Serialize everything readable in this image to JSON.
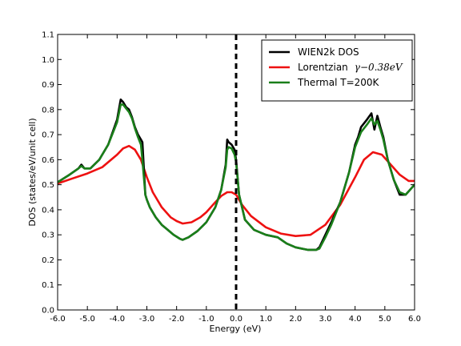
{
  "chart_data": {
    "type": "line",
    "title": "",
    "xlabel": "Energy (eV)",
    "ylabel": "DOS (states/eV/unit cell)",
    "xlim": [
      -6.0,
      6.0
    ],
    "ylim": [
      0.0,
      1.1
    ],
    "xticks": [
      "-6.0",
      "-5.0",
      "-4.0",
      "-3.0",
      "-2.0",
      "-1.0",
      "0.0",
      "1.0",
      "2.0",
      "3.0",
      "4.0",
      "5.0",
      "6.0"
    ],
    "yticks": [
      "0.0",
      "0.1",
      "0.2",
      "0.3",
      "0.4",
      "0.5",
      "0.6",
      "0.7",
      "0.8",
      "0.9",
      "1.0",
      "1.1"
    ],
    "grid": false,
    "legend_position": "top-right",
    "vline": {
      "x": 0.0,
      "style": "dashed",
      "color": "#000000"
    },
    "series": [
      {
        "name": "WIEN2k DOS",
        "color": "#000000",
        "x": [
          -6.0,
          -5.6,
          -5.3,
          -5.2,
          -5.1,
          -4.9,
          -4.6,
          -4.3,
          -4.0,
          -3.88,
          -3.8,
          -3.7,
          -3.6,
          -3.5,
          -3.4,
          -3.3,
          -3.2,
          -3.15,
          -3.05,
          -3.0,
          -2.9,
          -2.7,
          -2.5,
          -2.3,
          -2.1,
          -1.9,
          -1.8,
          -1.6,
          -1.3,
          -1.0,
          -0.7,
          -0.5,
          -0.35,
          -0.3,
          -0.25,
          -0.15,
          -0.05,
          0.0,
          0.1,
          0.3,
          0.6,
          1.0,
          1.4,
          1.7,
          2.0,
          2.4,
          2.7,
          2.8,
          3.0,
          3.2,
          3.5,
          3.8,
          4.0,
          4.1,
          4.2,
          4.4,
          4.55,
          4.65,
          4.75,
          4.85,
          4.95,
          5.1,
          5.3,
          5.5,
          5.7,
          6.0
        ],
        "y": [
          0.51,
          0.54,
          0.565,
          0.58,
          0.565,
          0.565,
          0.6,
          0.66,
          0.76,
          0.84,
          0.83,
          0.81,
          0.8,
          0.77,
          0.73,
          0.7,
          0.68,
          0.67,
          0.46,
          0.44,
          0.41,
          0.37,
          0.34,
          0.32,
          0.3,
          0.285,
          0.28,
          0.29,
          0.315,
          0.35,
          0.41,
          0.48,
          0.58,
          0.68,
          0.67,
          0.66,
          0.64,
          0.6,
          0.46,
          0.36,
          0.32,
          0.3,
          0.29,
          0.265,
          0.25,
          0.24,
          0.24,
          0.25,
          0.3,
          0.35,
          0.43,
          0.55,
          0.66,
          0.69,
          0.73,
          0.76,
          0.785,
          0.72,
          0.775,
          0.73,
          0.69,
          0.6,
          0.52,
          0.46,
          0.46,
          0.5
        ]
      },
      {
        "name": "Lorentzian",
        "name_math": "γ−0.38eV",
        "color": "#ee1111",
        "x": [
          -6.0,
          -5.5,
          -5.0,
          -4.5,
          -4.0,
          -3.8,
          -3.6,
          -3.4,
          -3.2,
          -3.0,
          -2.8,
          -2.5,
          -2.2,
          -2.0,
          -1.8,
          -1.5,
          -1.2,
          -1.0,
          -0.7,
          -0.5,
          -0.3,
          -0.15,
          0.0,
          0.2,
          0.5,
          1.0,
          1.5,
          2.0,
          2.5,
          3.0,
          3.5,
          4.0,
          4.3,
          4.6,
          4.9,
          5.2,
          5.5,
          5.8,
          6.0
        ],
        "y": [
          0.505,
          0.525,
          0.545,
          0.57,
          0.62,
          0.645,
          0.655,
          0.64,
          0.6,
          0.53,
          0.47,
          0.41,
          0.37,
          0.355,
          0.345,
          0.35,
          0.37,
          0.39,
          0.43,
          0.455,
          0.47,
          0.47,
          0.46,
          0.42,
          0.375,
          0.33,
          0.305,
          0.295,
          0.3,
          0.34,
          0.42,
          0.53,
          0.6,
          0.63,
          0.62,
          0.58,
          0.54,
          0.515,
          0.515
        ]
      },
      {
        "name": "Thermal T=200K",
        "color": "#1a7f1a",
        "x": [
          -6.0,
          -5.6,
          -5.3,
          -5.2,
          -5.1,
          -4.9,
          -4.6,
          -4.3,
          -4.0,
          -3.88,
          -3.8,
          -3.7,
          -3.6,
          -3.5,
          -3.4,
          -3.3,
          -3.2,
          -3.15,
          -3.05,
          -3.0,
          -2.9,
          -2.7,
          -2.5,
          -2.3,
          -2.1,
          -1.9,
          -1.8,
          -1.6,
          -1.3,
          -1.0,
          -0.7,
          -0.5,
          -0.35,
          -0.3,
          -0.25,
          -0.15,
          -0.05,
          0.0,
          0.1,
          0.3,
          0.6,
          1.0,
          1.4,
          1.7,
          2.0,
          2.4,
          2.7,
          2.8,
          3.0,
          3.2,
          3.5,
          3.8,
          4.0,
          4.1,
          4.2,
          4.4,
          4.55,
          4.65,
          4.75,
          4.85,
          4.95,
          5.1,
          5.3,
          5.5,
          5.7,
          6.0
        ],
        "y": [
          0.51,
          0.54,
          0.565,
          0.575,
          0.565,
          0.565,
          0.6,
          0.66,
          0.75,
          0.82,
          0.82,
          0.805,
          0.79,
          0.765,
          0.725,
          0.69,
          0.66,
          0.6,
          0.46,
          0.44,
          0.41,
          0.37,
          0.34,
          0.32,
          0.3,
          0.285,
          0.28,
          0.29,
          0.315,
          0.35,
          0.41,
          0.48,
          0.57,
          0.64,
          0.65,
          0.645,
          0.62,
          0.59,
          0.46,
          0.36,
          0.32,
          0.3,
          0.29,
          0.265,
          0.25,
          0.24,
          0.24,
          0.245,
          0.29,
          0.34,
          0.43,
          0.55,
          0.65,
          0.68,
          0.71,
          0.74,
          0.765,
          0.74,
          0.755,
          0.72,
          0.68,
          0.6,
          0.52,
          0.47,
          0.46,
          0.5
        ]
      }
    ]
  }
}
